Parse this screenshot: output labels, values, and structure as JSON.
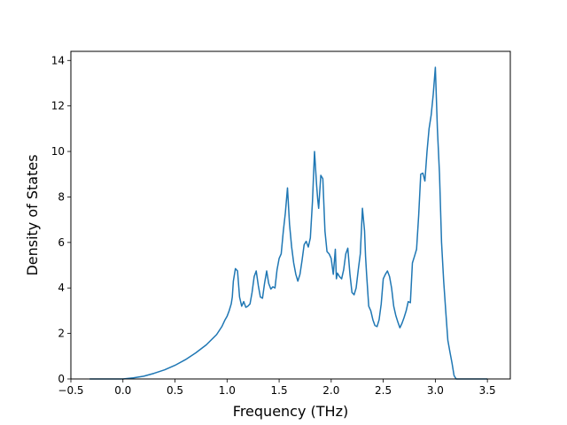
{
  "chart_data": {
    "type": "line",
    "title": "",
    "xlabel": "Frequency (THz)",
    "ylabel": "Density of States",
    "xlim": [
      -0.5,
      3.72
    ],
    "ylim": [
      0,
      14.4
    ],
    "x_ticks": [
      -0.5,
      0.0,
      0.5,
      1.0,
      1.5,
      2.0,
      2.5,
      3.0,
      3.5
    ],
    "x_tick_labels": [
      "−0.5",
      "0.0",
      "0.5",
      "1.0",
      "1.5",
      "2.0",
      "2.5",
      "3.0",
      "3.5"
    ],
    "y_ticks": [
      0,
      2,
      4,
      6,
      8,
      10,
      12,
      14
    ],
    "y_tick_labels": [
      "0",
      "2",
      "4",
      "6",
      "8",
      "10",
      "12",
      "14"
    ],
    "grid": false,
    "line_color": "#1f77b4",
    "series": [
      {
        "x": [
          -0.32,
          -0.2,
          0.0,
          0.1,
          0.2,
          0.3,
          0.4,
          0.5,
          0.6,
          0.7,
          0.8,
          0.9,
          0.95,
          0.98,
          1.0,
          1.02,
          1.04,
          1.05,
          1.06,
          1.08,
          1.1,
          1.12,
          1.14,
          1.16,
          1.18,
          1.2,
          1.22,
          1.24,
          1.26,
          1.28,
          1.3,
          1.32,
          1.34,
          1.36,
          1.38,
          1.4,
          1.42,
          1.44,
          1.46,
          1.48,
          1.5,
          1.52,
          1.54,
          1.56,
          1.58,
          1.6,
          1.62,
          1.64,
          1.66,
          1.68,
          1.7,
          1.72,
          1.74,
          1.76,
          1.78,
          1.8,
          1.82,
          1.84,
          1.86,
          1.87,
          1.88,
          1.9,
          1.92,
          1.94,
          1.96,
          1.98,
          2.0,
          2.02,
          2.04,
          2.05,
          2.06,
          2.08,
          2.1,
          2.12,
          2.14,
          2.16,
          2.18,
          2.2,
          2.22,
          2.24,
          2.26,
          2.28,
          2.3,
          2.32,
          2.33,
          2.34,
          2.36,
          2.38,
          2.4,
          2.42,
          2.44,
          2.46,
          2.48,
          2.5,
          2.52,
          2.54,
          2.56,
          2.58,
          2.6,
          2.62,
          2.64,
          2.66,
          2.68,
          2.7,
          2.72,
          2.74,
          2.76,
          2.78,
          2.8,
          2.82,
          2.84,
          2.86,
          2.88,
          2.9,
          2.92,
          2.94,
          2.96,
          2.98,
          3.0,
          3.02,
          3.04,
          3.06,
          3.08,
          3.1,
          3.12,
          3.14,
          3.16,
          3.18,
          3.2,
          3.25,
          3.3,
          3.5
        ],
        "y": [
          0.0,
          0.0,
          0.0,
          0.05,
          0.12,
          0.25,
          0.4,
          0.6,
          0.85,
          1.15,
          1.5,
          1.95,
          2.3,
          2.6,
          2.75,
          3.0,
          3.3,
          3.6,
          4.3,
          4.85,
          4.75,
          3.6,
          3.2,
          3.4,
          3.15,
          3.2,
          3.3,
          3.8,
          4.5,
          4.75,
          4.1,
          3.6,
          3.55,
          4.2,
          4.75,
          4.2,
          3.95,
          4.05,
          4.0,
          4.8,
          5.3,
          5.5,
          6.5,
          7.3,
          8.4,
          6.8,
          5.8,
          5.1,
          4.6,
          4.3,
          4.6,
          5.2,
          5.9,
          6.05,
          5.8,
          6.2,
          7.8,
          10.0,
          8.5,
          7.9,
          7.5,
          8.95,
          8.8,
          6.5,
          5.6,
          5.5,
          5.3,
          4.6,
          5.7,
          4.4,
          4.65,
          4.5,
          4.4,
          4.8,
          5.5,
          5.75,
          4.6,
          3.8,
          3.7,
          4.0,
          4.8,
          5.5,
          7.5,
          6.5,
          5.4,
          4.6,
          3.2,
          3.0,
          2.6,
          2.35,
          2.3,
          2.6,
          3.3,
          4.4,
          4.6,
          4.75,
          4.5,
          4.0,
          3.2,
          2.8,
          2.5,
          2.25,
          2.45,
          2.7,
          3.0,
          3.4,
          3.35,
          5.1,
          5.4,
          5.7,
          7.2,
          9.0,
          9.05,
          8.7,
          10.0,
          11.0,
          11.6,
          12.5,
          13.7,
          11.0,
          9.0,
          6.0,
          4.3,
          3.0,
          1.7,
          1.2,
          0.7,
          0.15,
          0.0,
          0.0,
          0.0,
          0.0
        ]
      }
    ]
  }
}
